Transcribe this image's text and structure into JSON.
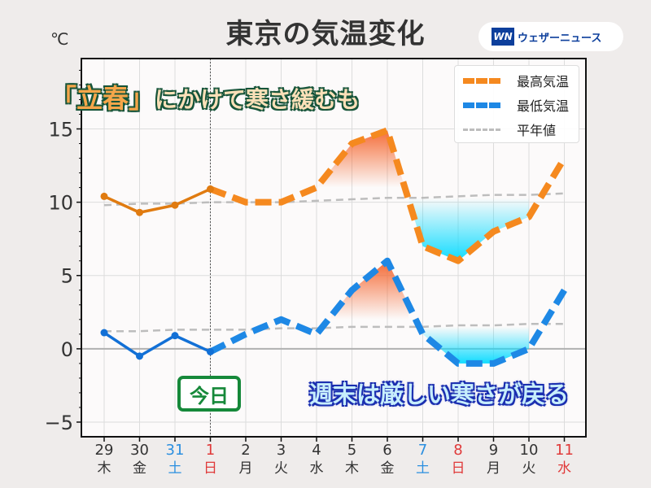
{
  "title": "東京の気温変化",
  "unit": "℃",
  "logo": {
    "mark": "WN",
    "text": "ウェザーニュース"
  },
  "annotations": {
    "top_bracket_open": "「",
    "top_keyword": "立春",
    "top_bracket_close": "」",
    "top_rest": "にかけて寒さ緩むも",
    "bottom": "週末は厳しい寒さが戻る",
    "today": "今日"
  },
  "legend": [
    {
      "label": "最高気温",
      "color": "#f5891f"
    },
    {
      "label": "最低気温",
      "color": "#1e88e5"
    },
    {
      "label": "平年値",
      "color": "#bdbdbd"
    }
  ],
  "chart_data": {
    "type": "line",
    "title": "東京の気温変化",
    "ylabel": "℃",
    "ylim": [
      -6,
      19.8
    ],
    "yticks": [
      15,
      10,
      5,
      0,
      -5
    ],
    "ytick_labels": [
      "15",
      "10",
      "5",
      "0",
      "−5"
    ],
    "grid": true,
    "legend_position": "top-right",
    "categories": [
      "29",
      "30",
      "31",
      "1",
      "2",
      "3",
      "4",
      "5",
      "6",
      "7",
      "8",
      "9",
      "10",
      "11"
    ],
    "weekdays": [
      "木",
      "金",
      "土",
      "日",
      "月",
      "火",
      "水",
      "木",
      "金",
      "土",
      "日",
      "月",
      "火",
      "水"
    ],
    "day_colors": [
      "#333",
      "#333",
      "#2b8fe0",
      "#e03a3a",
      "#333",
      "#333",
      "#333",
      "#333",
      "#333",
      "#2b8fe0",
      "#e03a3a",
      "#333",
      "#333",
      "#e03a3a"
    ],
    "today_index": 3,
    "series": [
      {
        "name": "最高気温",
        "color_observed": "#e07b10",
        "color_forecast": "#f5891f",
        "values": [
          10.4,
          9.3,
          9.8,
          10.9,
          10.0,
          10.0,
          11.0,
          14.0,
          14.9,
          7.0,
          6.0,
          8.0,
          9.0,
          13.0
        ]
      },
      {
        "name": "最低気温",
        "color_observed": "#1270d6",
        "color_forecast": "#1e88e5",
        "values": [
          1.1,
          -0.5,
          0.9,
          -0.2,
          1.0,
          2.0,
          1.0,
          4.0,
          6.0,
          1.0,
          -1.0,
          -1.0,
          0.0,
          4.0
        ]
      },
      {
        "name": "平年値(最高)",
        "color": "#bdbdbd",
        "values": [
          9.8,
          9.9,
          9.9,
          10.0,
          10.0,
          10.0,
          10.1,
          10.2,
          10.3,
          10.3,
          10.4,
          10.5,
          10.5,
          10.6
        ]
      },
      {
        "name": "平年値(最低)",
        "color": "#bdbdbd",
        "values": [
          1.2,
          1.2,
          1.3,
          1.3,
          1.3,
          1.4,
          1.4,
          1.5,
          1.5,
          1.5,
          1.6,
          1.6,
          1.7,
          1.7
        ]
      }
    ]
  }
}
